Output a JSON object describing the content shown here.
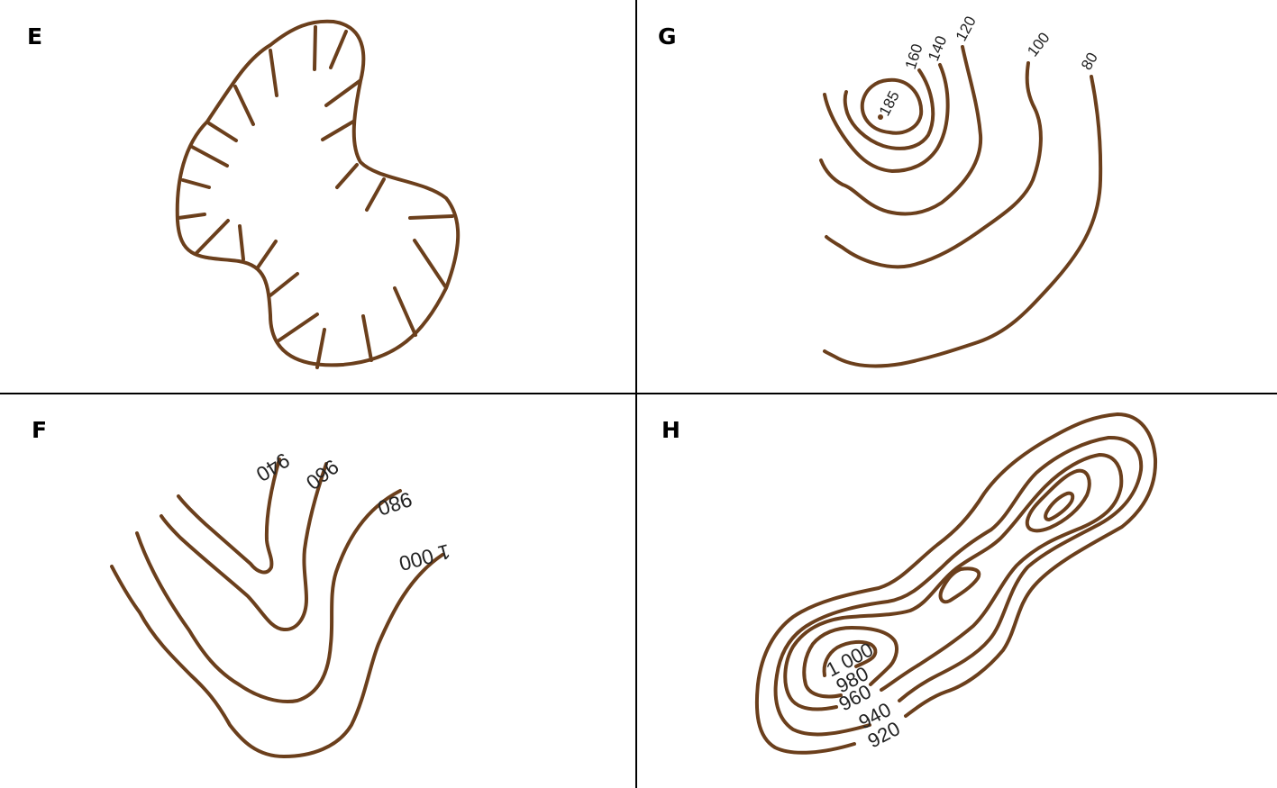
{
  "panels": {
    "e": {
      "letter": "E"
    },
    "f": {
      "letter": "F",
      "labels": [
        "940",
        "960",
        "980",
        "1 000"
      ]
    },
    "g": {
      "letter": "G",
      "labels": [
        "185",
        "160",
        "140",
        "120",
        "100",
        "80"
      ]
    },
    "h": {
      "letter": "H",
      "labels": [
        "1 000",
        "980",
        "960",
        "940",
        "920"
      ]
    }
  },
  "colors": {
    "contour": "#6b3f1c",
    "divider": "#000000"
  }
}
